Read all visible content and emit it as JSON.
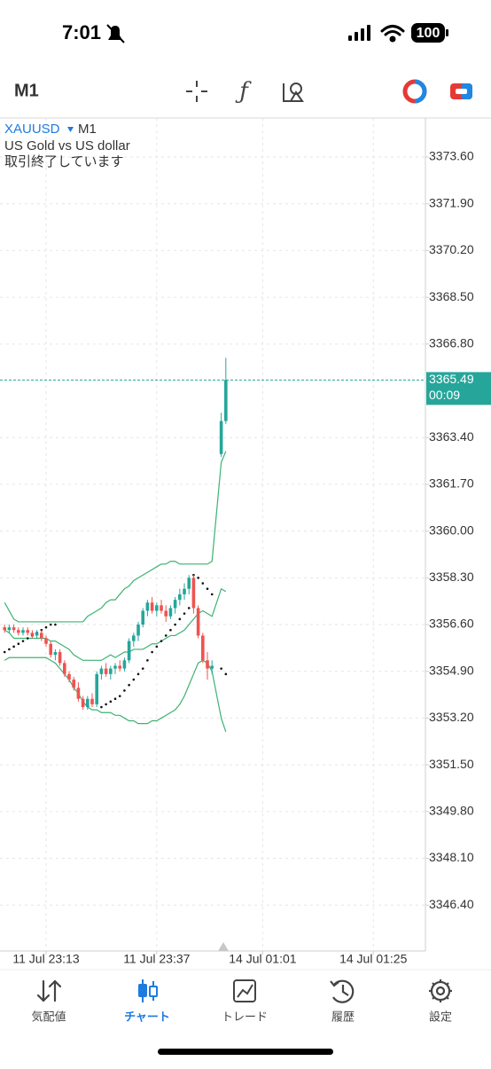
{
  "status_bar": {
    "time": "7:01",
    "battery": "100"
  },
  "toolbar": {
    "timeframe": "M1"
  },
  "chart_data": {
    "type": "candlestick",
    "symbol": "XAUUSD",
    "timeframe": "M1",
    "description": "US Gold vs US dollar",
    "status": "取引終了しています",
    "x": [
      0,
      1,
      2,
      3,
      4,
      5,
      6,
      7,
      8,
      9,
      10,
      11,
      12,
      13,
      14,
      15,
      16,
      17,
      18,
      19,
      20,
      21,
      22,
      23,
      24,
      25,
      26,
      27,
      28,
      29,
      30,
      31,
      32,
      33,
      34,
      35,
      36,
      37,
      38,
      39,
      40,
      41,
      42,
      43,
      44,
      45,
      47,
      48
    ],
    "open": [
      3356.5,
      3356.4,
      3356.5,
      3356.4,
      3356.3,
      3356.4,
      3356.3,
      3356.2,
      3356.3,
      3356.1,
      3355.9,
      3355.5,
      3355.6,
      3355.2,
      3354.8,
      3354.6,
      3354.3,
      3353.9,
      3353.6,
      3353.9,
      3353.7,
      3354.8,
      3355.0,
      3354.8,
      3355.0,
      3355.1,
      3355.0,
      3355.3,
      3356.0,
      3356.2,
      3356.6,
      3357.1,
      3357.4,
      3357.1,
      3357.3,
      3357.1,
      3356.9,
      3357.2,
      3357.5,
      3357.7,
      3357.9,
      3358.3,
      3357.2,
      3356.2,
      3355.3,
      3355.0,
      3362.8,
      3364.0
    ],
    "high": [
      3356.6,
      3356.6,
      3356.6,
      3356.5,
      3356.5,
      3356.5,
      3356.4,
      3356.4,
      3356.4,
      3356.2,
      3356.0,
      3355.7,
      3355.7,
      3355.3,
      3354.9,
      3354.7,
      3354.5,
      3354.0,
      3354.0,
      3354.1,
      3354.9,
      3355.1,
      3355.2,
      3355.1,
      3355.2,
      3355.3,
      3355.4,
      3356.1,
      3356.3,
      3356.7,
      3357.2,
      3357.5,
      3357.6,
      3357.4,
      3357.5,
      3357.3,
      3357.3,
      3357.6,
      3357.9,
      3358.1,
      3358.4,
      3358.4,
      3357.3,
      3356.3,
      3355.6,
      3355.3,
      3364.3,
      3366.3
    ],
    "low": [
      3356.3,
      3356.3,
      3356.3,
      3356.2,
      3356.2,
      3356.2,
      3356.1,
      3356.1,
      3356.0,
      3355.8,
      3355.4,
      3355.3,
      3355.1,
      3354.7,
      3354.5,
      3354.2,
      3353.8,
      3353.5,
      3353.5,
      3353.6,
      3353.6,
      3354.6,
      3354.7,
      3354.6,
      3354.8,
      3354.9,
      3354.9,
      3355.2,
      3355.8,
      3356.0,
      3356.5,
      3356.9,
      3357.0,
      3356.9,
      3357.0,
      3356.7,
      3356.8,
      3357.0,
      3357.3,
      3357.5,
      3357.7,
      3357.0,
      3356.1,
      3355.2,
      3354.6,
      3354.8,
      3362.7,
      3363.9
    ],
    "close": [
      3356.4,
      3356.5,
      3356.4,
      3356.3,
      3356.4,
      3356.3,
      3356.2,
      3356.3,
      3356.1,
      3355.9,
      3355.5,
      3355.6,
      3355.2,
      3354.8,
      3354.6,
      3354.3,
      3353.9,
      3353.6,
      3353.9,
      3353.7,
      3354.8,
      3355.0,
      3354.8,
      3355.0,
      3355.1,
      3355.0,
      3355.3,
      3356.0,
      3356.2,
      3356.6,
      3357.1,
      3357.4,
      3357.1,
      3357.3,
      3357.1,
      3356.9,
      3357.2,
      3357.5,
      3357.7,
      3357.9,
      3358.3,
      3357.2,
      3356.2,
      3355.3,
      3355.0,
      3355.1,
      3364.0,
      3365.49
    ],
    "up_color": "#26a69a",
    "down_color": "#ef5350",
    "bands": {
      "color": "#3cb371",
      "upper": [
        3357.4,
        3357.1,
        3356.8,
        3356.7,
        3356.7,
        3356.7,
        3356.7,
        3356.7,
        3356.7,
        3356.7,
        3356.7,
        3356.7,
        3356.7,
        3356.7,
        3356.7,
        3356.7,
        3356.7,
        3356.7,
        3356.9,
        3357.0,
        3357.1,
        3357.2,
        3357.4,
        3357.5,
        3357.5,
        3357.7,
        3357.9,
        3358.0,
        3358.2,
        3358.3,
        3358.4,
        3358.5,
        3358.6,
        3358.7,
        3358.8,
        3358.8,
        3358.9,
        3358.9,
        3358.8,
        3358.8,
        3358.8,
        3358.8,
        3358.8,
        3358.8,
        3358.8,
        3358.9,
        3362.5,
        3362.9
      ],
      "middle": [
        3356.4,
        3356.3,
        3356.1,
        3356.1,
        3356.1,
        3356.1,
        3356.1,
        3356.1,
        3356.1,
        3356.1,
        3356.0,
        3356.0,
        3355.9,
        3355.8,
        3355.7,
        3355.5,
        3355.4,
        3355.3,
        3355.3,
        3355.3,
        3355.3,
        3355.3,
        3355.4,
        3355.5,
        3355.4,
        3355.5,
        3355.6,
        3355.6,
        3355.7,
        3355.7,
        3355.7,
        3355.8,
        3355.9,
        3355.9,
        3356.0,
        3356.1,
        3356.2,
        3356.2,
        3356.3,
        3356.4,
        3356.6,
        3356.8,
        3357.0,
        3357.1,
        3357.0,
        3356.9,
        3357.9,
        3357.8
      ],
      "lower": [
        3355.3,
        3355.4,
        3355.4,
        3355.4,
        3355.4,
        3355.4,
        3355.4,
        3355.4,
        3355.4,
        3355.4,
        3355.3,
        3355.2,
        3355.0,
        3354.8,
        3354.6,
        3354.3,
        3354.1,
        3353.8,
        3353.6,
        3353.5,
        3353.5,
        3353.4,
        3353.4,
        3353.4,
        3353.3,
        3353.3,
        3353.2,
        3353.1,
        3353.1,
        3353.0,
        3353.0,
        3353.0,
        3353.1,
        3353.1,
        3353.2,
        3353.3,
        3353.4,
        3353.5,
        3353.7,
        3354.0,
        3354.4,
        3354.8,
        3355.2,
        3355.3,
        3355.2,
        3354.9,
        3353.2,
        3352.7
      ]
    },
    "sar": {
      "color": "#111111",
      "values": [
        3355.6,
        3355.7,
        3355.8,
        3355.9,
        3356.0,
        3356.1,
        3356.2,
        3356.3,
        3356.4,
        3356.5,
        3356.6,
        3356.6,
        null,
        null,
        null,
        null,
        null,
        null,
        null,
        null,
        null,
        3353.6,
        3353.7,
        3353.8,
        3353.9,
        3354.0,
        3354.2,
        3354.4,
        3354.6,
        3354.8,
        3355.0,
        3355.3,
        3355.6,
        3355.8,
        3356.0,
        3356.2,
        3356.4,
        3356.6,
        3356.8,
        3357.0,
        3357.2,
        3358.4,
        3358.3,
        3358.1,
        3357.9,
        3357.7,
        3355.0,
        3354.8
      ]
    },
    "current_price": 3365.49,
    "current_price_color": "#26a69a",
    "countdown": "00:09",
    "xlim": [
      -1,
      91.3
    ],
    "xticks": [
      {
        "value": 9,
        "label": "11 Jul 23:13"
      },
      {
        "value": 33,
        "label": "11 Jul 23:37"
      },
      {
        "value": 56,
        "label": "14 Jul 01:01"
      },
      {
        "value": 80,
        "label": "14 Jul 01:25"
      }
    ],
    "ylim": [
      3344.73,
      3375.02
    ],
    "yticks": [
      {
        "value": 3373.6,
        "label": "3373.60"
      },
      {
        "value": 3371.9,
        "label": "3371.90"
      },
      {
        "value": 3370.2,
        "label": "3370.20"
      },
      {
        "value": 3368.5,
        "label": "3368.50"
      },
      {
        "value": 3366.8,
        "label": "3366.80"
      },
      {
        "value": 3363.4,
        "label": "3363.40"
      },
      {
        "value": 3361.7,
        "label": "3361.70"
      },
      {
        "value": 3360.0,
        "label": "3360.00"
      },
      {
        "value": 3358.3,
        "label": "3358.30"
      },
      {
        "value": 3356.6,
        "label": "3356.60"
      },
      {
        "value": 3354.9,
        "label": "3354.90"
      },
      {
        "value": 3353.2,
        "label": "3353.20"
      },
      {
        "value": 3351.5,
        "label": "3351.50"
      },
      {
        "value": 3349.8,
        "label": "3349.80"
      },
      {
        "value": 3348.1,
        "label": "3348.10"
      },
      {
        "value": 3346.4,
        "label": "3346.40"
      }
    ],
    "grid": true
  },
  "tab_bar": {
    "tabs": [
      "気配値",
      "チャート",
      "トレード",
      "履歴",
      "設定"
    ],
    "active": 1
  }
}
